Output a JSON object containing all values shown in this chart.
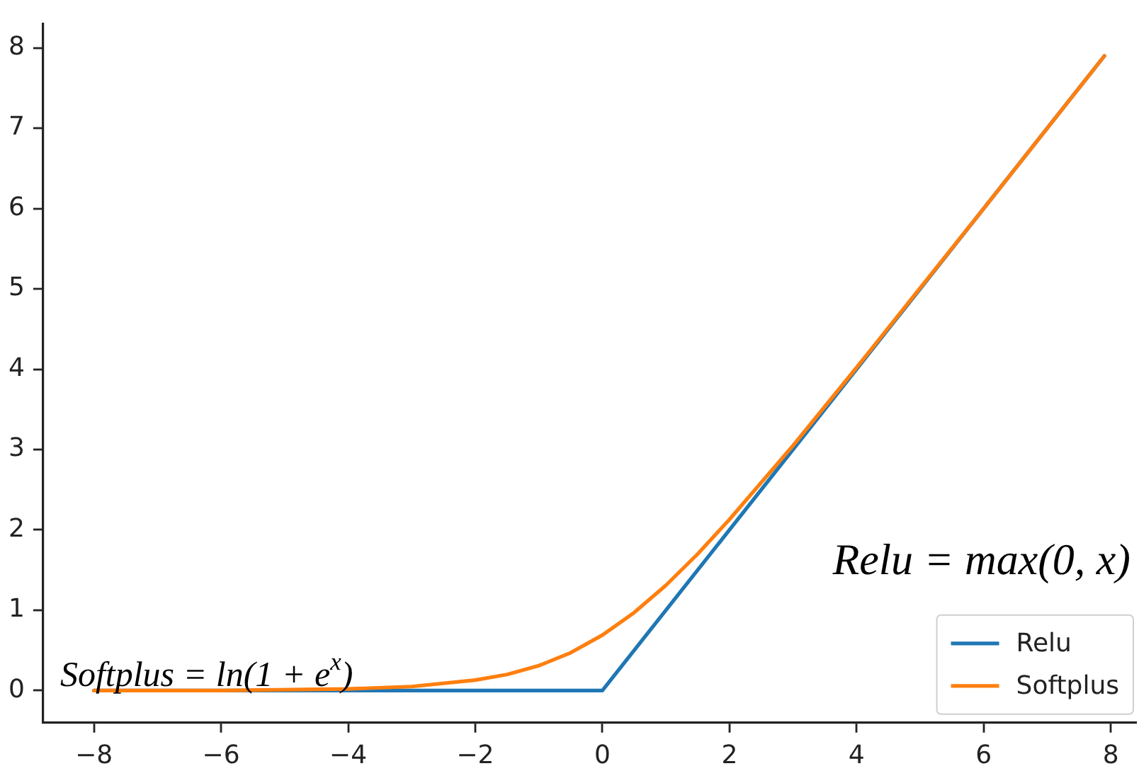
{
  "chart_data": {
    "type": "line",
    "xlim": [
      -8.8,
      8.4
    ],
    "xticks": [
      {
        "value": -8,
        "label": "−8"
      },
      {
        "value": -6,
        "label": "−6"
      },
      {
        "value": -4,
        "label": "−4"
      },
      {
        "value": -2,
        "label": "−2"
      },
      0,
      2,
      4,
      6,
      8
    ],
    "ylim": [
      -0.4,
      8.3
    ],
    "yticks": [
      0,
      1,
      2,
      3,
      4,
      5,
      6,
      7,
      8
    ],
    "grid": false,
    "legend": "bottom right",
    "marker": "none",
    "line_style": "solid",
    "series": [
      {
        "name": "Relu",
        "color": "#1f77b4",
        "x": [
          -8,
          0,
          7.9
        ],
        "values": [
          0,
          0,
          7.9
        ]
      },
      {
        "name": "Softplus",
        "color": "#ff7f0e",
        "x": [
          -8,
          -6,
          -4,
          -3,
          -2,
          -1.5,
          -1,
          -0.5,
          0,
          0.5,
          1,
          1.5,
          2,
          3,
          4,
          5,
          6,
          7,
          7.9
        ],
        "values": [
          0,
          0,
          0.02,
          0.05,
          0.13,
          0.2,
          0.31,
          0.47,
          0.69,
          0.97,
          1.31,
          1.7,
          2.13,
          3.05,
          4.02,
          5.01,
          6,
          7,
          7.9
        ]
      }
    ],
    "annotations": [
      "Softplus = ln(1 + e$^{x}$)",
      "Relu = max(0, x)"
    ]
  }
}
